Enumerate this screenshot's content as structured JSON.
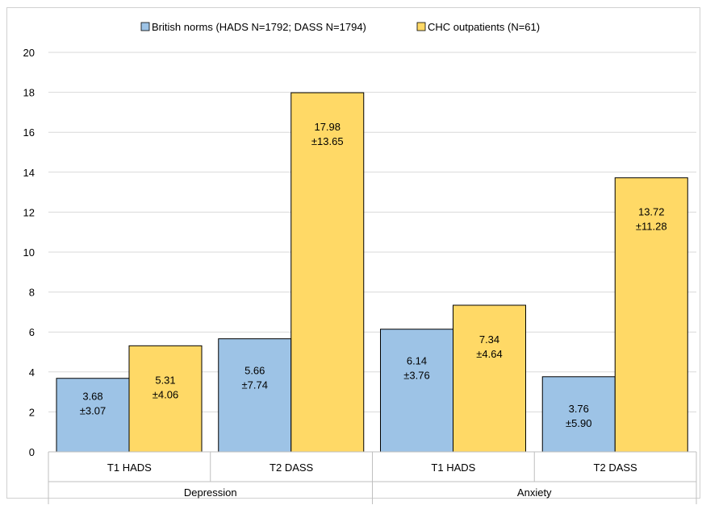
{
  "chart_data": {
    "type": "bar",
    "groups": [
      {
        "label": "Depression",
        "categories": [
          "T1 HADS",
          "T2 DASS"
        ]
      },
      {
        "label": "Anxiety",
        "categories": [
          "T1 HADS",
          "T2 DASS"
        ]
      }
    ],
    "categories": [
      "T1 HADS",
      "T2 DASS",
      "T1 HADS",
      "T2 DASS"
    ],
    "series": [
      {
        "name": "British norms (HADS N=1792; DASS N=1794)",
        "color": "#9dc3e6",
        "values": [
          3.68,
          5.66,
          6.14,
          3.76
        ],
        "data_labels": [
          [
            "3.68",
            "±3.07"
          ],
          [
            "5.66",
            "±7.74"
          ],
          [
            "6.14",
            "±3.76"
          ],
          [
            "3.76",
            "±5.90"
          ]
        ]
      },
      {
        "name": "CHC outpatients (N=61)",
        "color": "#ffd966",
        "values": [
          5.31,
          17.98,
          7.34,
          13.72
        ],
        "data_labels": [
          [
            "5.31",
            "±4.06"
          ],
          [
            "17.98",
            "±13.65"
          ],
          [
            "7.34",
            "±4.64"
          ],
          [
            "13.72",
            "±11.28"
          ]
        ]
      }
    ],
    "ylim": [
      0,
      20
    ],
    "yticks": [
      "0",
      "2",
      "4",
      "6",
      "8",
      "10",
      "12",
      "14",
      "16",
      "18",
      "20"
    ],
    "grid": true,
    "legend_position": "top"
  }
}
